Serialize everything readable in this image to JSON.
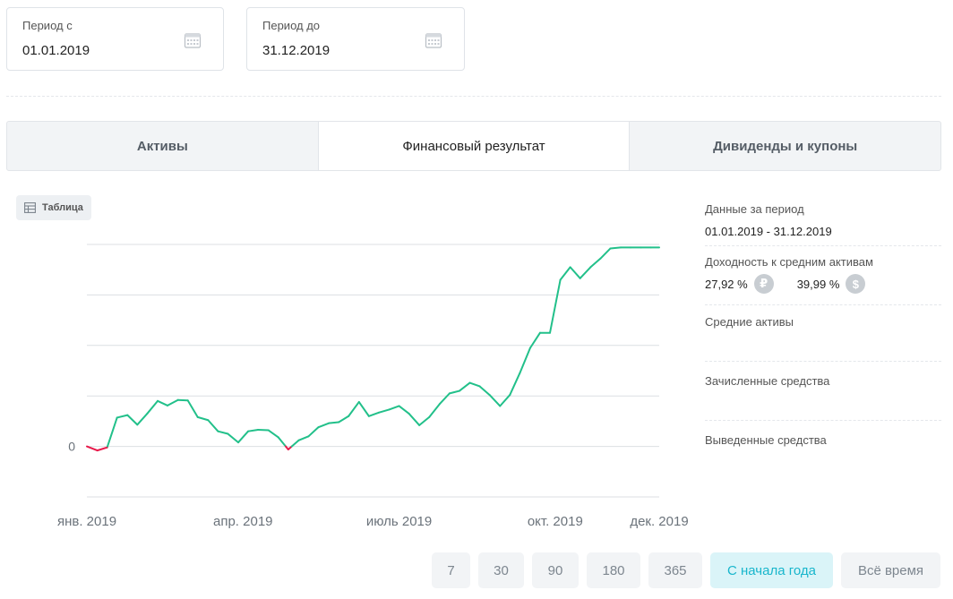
{
  "period_from": {
    "label": "Период с",
    "value": "01.01.2019",
    "icon": "calendar-icon"
  },
  "period_to": {
    "label": "Период до",
    "value": "31.12.2019",
    "icon": "calendar-icon"
  },
  "tabs": [
    {
      "label": "Активы",
      "active": false
    },
    {
      "label": "Финансовый результат",
      "active": true
    },
    {
      "label": "Дивиденды и купоны",
      "active": false
    }
  ],
  "table_button": {
    "label": "Таблица",
    "icon": "table-icon"
  },
  "side": {
    "period_title": "Данные за период",
    "period_value": "01.01.2019 - 31.12.2019",
    "yield_title": "Доходность к средним активам",
    "yield_rub": "27,92 %",
    "rub_symbol": "₽",
    "yield_usd": "39,99 %",
    "usd_symbol": "$",
    "avg_assets_title": "Средние активы",
    "credited_title": "Зачисленные средства",
    "withdrawn_title": "Выведенные средства"
  },
  "period_buttons": [
    {
      "label": "7",
      "active": false
    },
    {
      "label": "30",
      "active": false
    },
    {
      "label": "90",
      "active": false
    },
    {
      "label": "180",
      "active": false
    },
    {
      "label": "365",
      "active": false
    },
    {
      "label": "С начала года",
      "active": true
    },
    {
      "label": "Всё время",
      "active": false
    }
  ],
  "colors": {
    "positive": "#22c08a",
    "negative": "#e8194a",
    "accent": "#18b6cc"
  },
  "chart_data": {
    "type": "line",
    "y_tick_labels": [
      "0"
    ],
    "x_tick_labels": [
      "янв. 2019",
      "апр. 2019",
      "июль 2019",
      "окт. 2019",
      "дек. 2019"
    ],
    "x_tick_positions": [
      0,
      3,
      6,
      9,
      11
    ],
    "x_range": [
      0,
      11
    ],
    "y_range": [
      -1,
      4
    ],
    "grid": true,
    "series": [
      {
        "x": [
          0,
          0.2,
          0.39,
          0.58,
          0.78,
          0.97,
          1.16,
          1.36,
          1.55,
          1.75,
          1.94,
          2.13,
          2.33,
          2.52,
          2.71,
          2.91,
          3.1,
          3.29,
          3.49,
          3.68,
          3.87,
          4.07,
          4.26,
          4.45,
          4.65,
          4.84,
          5.03,
          5.23,
          5.42,
          5.61,
          5.81,
          6.0,
          6.19,
          6.39,
          6.58,
          6.78,
          6.97,
          7.16,
          7.36,
          7.55,
          7.74,
          7.94,
          8.13,
          8.32,
          8.52,
          8.71,
          8.9,
          9.1,
          9.29,
          9.48,
          9.68,
          9.87,
          10.06,
          10.26,
          10.45,
          10.65,
          10.84,
          11.0
        ],
        "y": [
          0,
          -0.08,
          -0.02,
          0.57,
          0.62,
          0.43,
          0.65,
          0.9,
          0.81,
          0.92,
          0.91,
          0.58,
          0.52,
          0.3,
          0.25,
          0.08,
          0.3,
          0.33,
          0.32,
          0.18,
          -0.06,
          0.12,
          0.2,
          0.38,
          0.46,
          0.48,
          0.6,
          0.88,
          0.6,
          0.67,
          0.73,
          0.8,
          0.65,
          0.42,
          0.58,
          0.84,
          1.05,
          1.1,
          1.26,
          1.19,
          1.02,
          0.8,
          1.02,
          1.45,
          1.95,
          2.25,
          2.25,
          3.3,
          3.55,
          3.33,
          3.55,
          3.72,
          3.92,
          3.94,
          3.94,
          3.94,
          3.94,
          3.94
        ]
      }
    ]
  }
}
